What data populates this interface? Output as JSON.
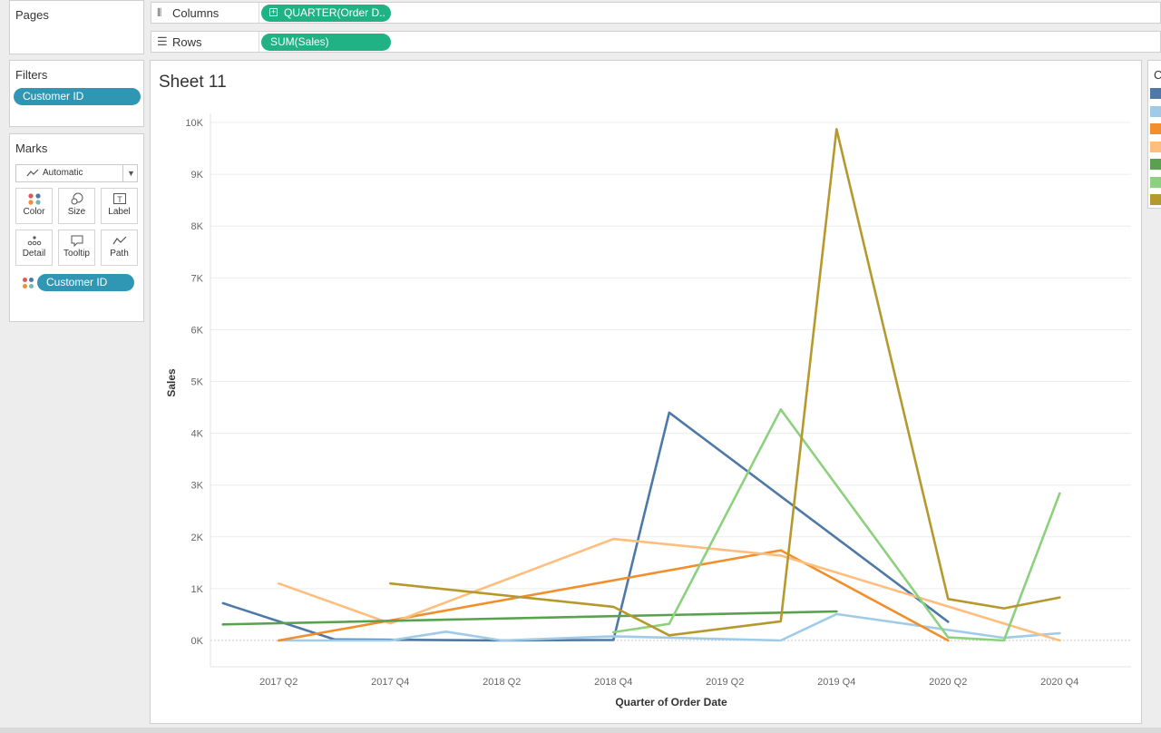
{
  "pages": {
    "title": "Pages"
  },
  "filters": {
    "title": "Filters",
    "pill": "Customer ID"
  },
  "marks": {
    "title": "Marks",
    "type_label": "Automatic",
    "buttons": [
      "Color",
      "Size",
      "Label",
      "Detail",
      "Tooltip",
      "Path"
    ],
    "color_pill": "Customer ID"
  },
  "shelves": {
    "columns_label": "Columns",
    "columns_pill": "QUARTER(Order D..",
    "rows_label": "Rows",
    "rows_pill": "SUM(Sales)"
  },
  "legend": {
    "title_fragment": "C",
    "colors": [
      "#4e79a7",
      "#a0cbe8",
      "#f28e2b",
      "#ffbe7d",
      "#59a14f",
      "#8cd17d",
      "#b6992d"
    ]
  },
  "chart_data": {
    "type": "line",
    "title": "Sheet 11",
    "xlabel": "Quarter of Order Date",
    "ylabel": "Sales",
    "ylim": [
      -500,
      10000
    ],
    "categories": [
      "2017 Q1",
      "2017 Q2",
      "2017 Q3",
      "2017 Q4",
      "2018 Q1",
      "2018 Q2",
      "2018 Q3",
      "2018 Q4",
      "2019 Q1",
      "2019 Q2",
      "2019 Q3",
      "2019 Q4",
      "2020 Q1",
      "2020 Q2",
      "2020 Q3",
      "2020 Q4"
    ],
    "tick_labels": [
      "2017 Q2",
      "2017 Q4",
      "2018 Q2",
      "2018 Q4",
      "2019 Q2",
      "2019 Q4",
      "2020 Q2",
      "2020 Q4"
    ],
    "y_ticks": [
      0,
      1000,
      2000,
      3000,
      4000,
      5000,
      6000,
      7000,
      8000,
      9000,
      10000
    ],
    "y_tick_labels": [
      "0K",
      "1K",
      "2K",
      "3K",
      "4K",
      "5K",
      "6K",
      "7K",
      "8K",
      "9K",
      "10K"
    ],
    "series": [
      {
        "color": "#4e79a7",
        "points": [
          [
            "2017 Q1",
            720
          ],
          [
            "2017 Q3",
            20
          ],
          [
            "2018 Q2",
            0
          ],
          [
            "2018 Q4",
            10
          ],
          [
            "2019 Q1",
            4400
          ],
          [
            "2020 Q2",
            360
          ]
        ]
      },
      {
        "color": "#a0cbe8",
        "points": [
          [
            "2017 Q2",
            0
          ],
          [
            "2017 Q4",
            0
          ],
          [
            "2018 Q1",
            170
          ],
          [
            "2018 Q2",
            0
          ],
          [
            "2018 Q4",
            80
          ],
          [
            "2019 Q3",
            0
          ],
          [
            "2019 Q4",
            510
          ],
          [
            "2020 Q3",
            50
          ],
          [
            "2020 Q4",
            140
          ]
        ]
      },
      {
        "color": "#f28e2b",
        "points": [
          [
            "2017 Q2",
            0
          ],
          [
            "2019 Q3",
            1740
          ],
          [
            "2020 Q2",
            0
          ]
        ]
      },
      {
        "color": "#ffbe7d",
        "points": [
          [
            "2017 Q2",
            1100
          ],
          [
            "2017 Q4",
            330
          ],
          [
            "2018 Q4",
            1960
          ],
          [
            "2019 Q3",
            1640
          ],
          [
            "2020 Q4",
            0
          ]
        ]
      },
      {
        "color": "#59a14f",
        "points": [
          [
            "2017 Q1",
            310
          ],
          [
            "2019 Q4",
            560
          ]
        ]
      },
      {
        "color": "#8cd17d",
        "points": [
          [
            "2018 Q4",
            160
          ],
          [
            "2019 Q1",
            320
          ],
          [
            "2019 Q3",
            4460
          ],
          [
            "2020 Q2",
            60
          ],
          [
            "2020 Q3",
            0
          ],
          [
            "2020 Q4",
            2840
          ]
        ]
      },
      {
        "color": "#b6992d",
        "points": [
          [
            "2017 Q4",
            1100
          ],
          [
            "2018 Q4",
            650
          ],
          [
            "2019 Q1",
            100
          ],
          [
            "2019 Q3",
            370
          ],
          [
            "2019 Q4",
            9870
          ],
          [
            "2020 Q2",
            800
          ],
          [
            "2020 Q3",
            620
          ],
          [
            "2020 Q4",
            830
          ]
        ]
      }
    ]
  }
}
